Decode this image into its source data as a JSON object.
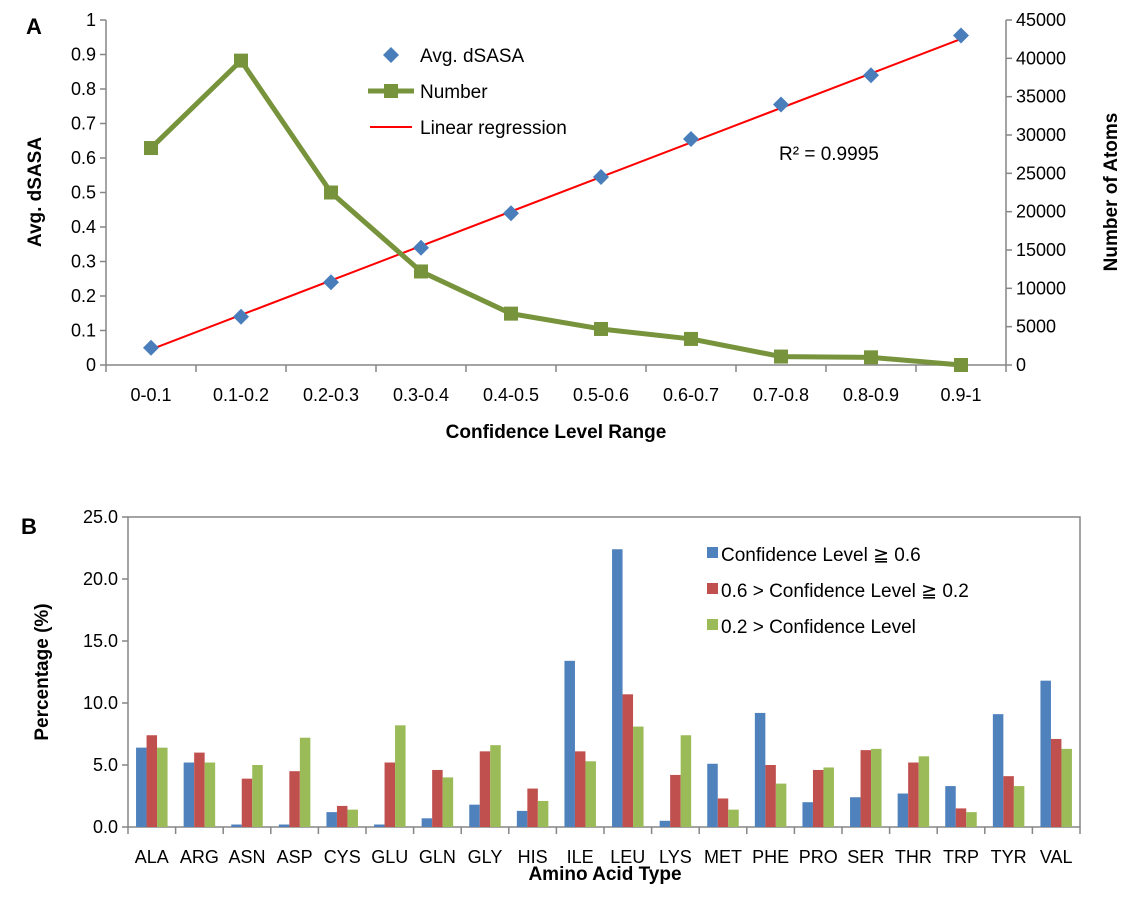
{
  "colors": {
    "dsasa": "#4a7ebb",
    "number": "#77933c",
    "regression": "#ff0000",
    "series_high": "#4f81bd",
    "series_mid": "#c0504d",
    "series_low": "#9bbb59"
  },
  "chart_data": [
    {
      "panel": "A",
      "type": "line",
      "xlabel": "Confidence Level Range",
      "ylabel": "Avg. dSASA",
      "y2label": "Number of Atoms",
      "categories": [
        "0-0.1",
        "0.1-0.2",
        "0.2-0.3",
        "0.3-0.4",
        "0.4-0.5",
        "0.5-0.6",
        "0.6-0.7",
        "0.7-0.8",
        "0.8-0.9",
        "0.9-1"
      ],
      "ylim": [
        0,
        1
      ],
      "yticks": [
        "0",
        "0.1",
        "0.2",
        "0.3",
        "0.4",
        "0.5",
        "0.6",
        "0.7",
        "0.8",
        "0.9",
        "1"
      ],
      "y2lim": [
        0,
        45000
      ],
      "y2ticks": [
        "0",
        "5000",
        "10000",
        "15000",
        "20000",
        "25000",
        "30000",
        "35000",
        "40000",
        "45000"
      ],
      "series": [
        {
          "name": "Avg. dSASA",
          "axis": "left",
          "marker": "diamond",
          "values": [
            0.05,
            0.14,
            0.24,
            0.34,
            0.44,
            0.545,
            0.655,
            0.755,
            0.84,
            0.955
          ]
        },
        {
          "name": "Number",
          "axis": "right",
          "marker": "square",
          "values": [
            28300,
            39700,
            22500,
            12200,
            6700,
            4700,
            3400,
            1100,
            1000,
            0
          ]
        },
        {
          "name": "Linear regression",
          "axis": "left",
          "line_from": 0.045,
          "line_to": 0.945
        }
      ],
      "annotation": "R² = 0.9995",
      "legend_position": "top-center"
    },
    {
      "panel": "B",
      "type": "bar",
      "xlabel": "Amino Acid Type",
      "ylabel": "Percentage (%)",
      "categories": [
        "ALA",
        "ARG",
        "ASN",
        "ASP",
        "CYS",
        "GLU",
        "GLN",
        "GLY",
        "HIS",
        "ILE",
        "LEU",
        "LYS",
        "MET",
        "PHE",
        "PRO",
        "SER",
        "THR",
        "TRP",
        "TYR",
        "VAL"
      ],
      "ylim": [
        0,
        25
      ],
      "yticks": [
        "0.0",
        "5.0",
        "10.0",
        "15.0",
        "20.0",
        "25.0"
      ],
      "series": [
        {
          "name": "Confidence Level ≧ 0.6",
          "values": [
            6.4,
            5.2,
            0.2,
            0.2,
            1.2,
            0.2,
            0.7,
            1.8,
            1.3,
            13.4,
            22.4,
            0.5,
            5.1,
            9.2,
            2.0,
            2.4,
            2.7,
            3.3,
            9.1,
            11.8
          ]
        },
        {
          "name": "0.6 > Confidence Level ≧ 0.2",
          "values": [
            7.4,
            6.0,
            3.9,
            4.5,
            1.7,
            5.2,
            4.6,
            6.1,
            3.1,
            6.1,
            10.7,
            4.2,
            2.3,
            5.0,
            4.6,
            6.2,
            5.2,
            1.5,
            4.1,
            7.1
          ]
        },
        {
          "name": "0.2 > Confidence Level",
          "values": [
            6.4,
            5.2,
            5.0,
            7.2,
            1.4,
            8.2,
            4.0,
            6.6,
            2.1,
            5.3,
            8.1,
            7.4,
            1.4,
            3.5,
            4.8,
            6.3,
            5.7,
            1.2,
            3.3,
            6.3
          ]
        }
      ],
      "legend_position": "top-right"
    }
  ]
}
